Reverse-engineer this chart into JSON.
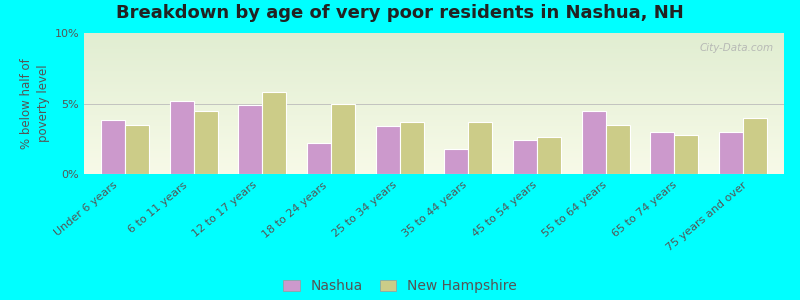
{
  "title": "Breakdown by age of very poor residents in Nashua, NH",
  "ylabel": "% below half of\npoverty level",
  "categories": [
    "Under 6 years",
    "6 to 11 years",
    "12 to 17 years",
    "18 to 24 years",
    "25 to 34 years",
    "35 to 44 years",
    "45 to 54 years",
    "55 to 64 years",
    "65 to 74 years",
    "75 years and over"
  ],
  "nashua_values": [
    3.8,
    5.2,
    4.9,
    2.2,
    3.4,
    1.8,
    2.4,
    4.5,
    3.0,
    3.0
  ],
  "nh_values": [
    3.5,
    4.5,
    5.8,
    5.0,
    3.7,
    3.7,
    2.6,
    3.5,
    2.8,
    4.0
  ],
  "nashua_color": "#cc99cc",
  "nh_color": "#cccc88",
  "bar_edge_color": "#ffffff",
  "ylim": [
    0,
    10
  ],
  "ytick_labels": [
    "0%",
    "5%",
    "10%"
  ],
  "ytick_vals": [
    0,
    5,
    10
  ],
  "outer_bg": "#00ffff",
  "title_fontsize": 13,
  "ylabel_fontsize": 8.5,
  "tick_fontsize": 8,
  "xtick_fontsize": 8,
  "legend_fontsize": 10,
  "watermark": "City-Data.com"
}
